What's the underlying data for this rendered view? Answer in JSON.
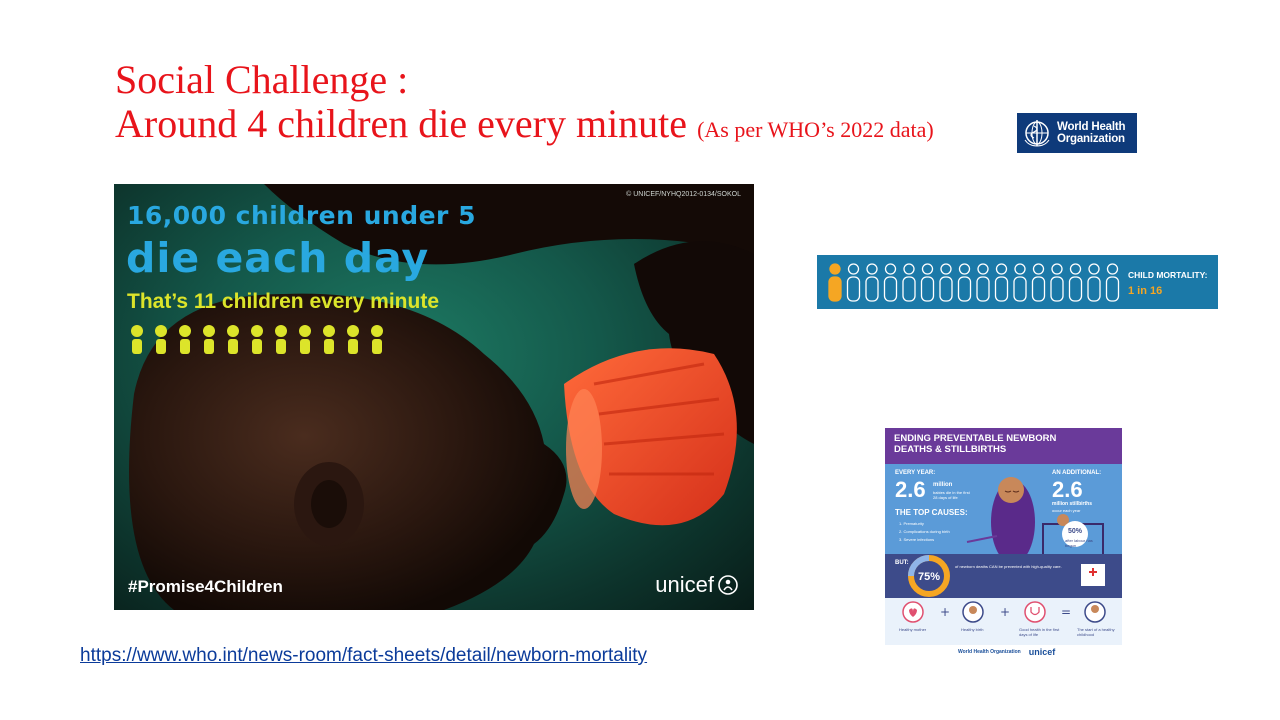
{
  "slide": {
    "title_line1": "Social Challenge :",
    "title_line2": "Around 4 children die every minute",
    "title_note": "(As per WHO’s 2022 data)",
    "url": "https://www.who.int/news-room/fact-sheets/detail/newborn-mortality"
  },
  "who_logo": {
    "line1": "World Health",
    "line2": "Organization"
  },
  "poster": {
    "line1": "16,000 children under 5",
    "line2": "die each day",
    "line3": "That’s 11 children every minute",
    "people_count": 11,
    "credit": "© UNICEF/NYHQ2012-0134/SOKOL",
    "hashtag": "#Promise4Children",
    "logo": "unicef"
  },
  "mortality_bar": {
    "label": "CHILD MORTALITY:",
    "value": "1 in 16",
    "total_figures": 16,
    "highlighted": 1
  },
  "infographic": {
    "title_line1": "ENDING PREVENTABLE NEWBORN",
    "title_line2": "DEATHS & STILLBIRTHS",
    "every_year": "EVERY YEAR:",
    "newborn_deaths_value": "2.6",
    "newborn_deaths_unit": "million",
    "newborn_deaths_desc": "babies die in the first 28 days of life",
    "additional": "AN ADDITIONAL:",
    "stillbirths_value": "2.6",
    "stillbirths_unit": "million stillbirths",
    "stillbirths_desc": "occur each year",
    "top_causes": "THE TOP CAUSES:",
    "causes": [
      "Prematurity",
      "Complications during birth",
      "Severe infections"
    ],
    "labour_pct": "50%",
    "labour_desc": "after labour has begun",
    "but": "BUT:",
    "preventable_pct": "75%",
    "preventable_desc": "of newborn deaths CAN be prevented with high-quality care.",
    "bottom_labels": [
      "Healthy mother",
      "Healthy birth",
      "Good health in the first days of life",
      "The start of a healthy childhood"
    ],
    "logos": [
      "World Health Organization",
      "unicef"
    ]
  },
  "colors": {
    "title_red": "#e8141b",
    "who_blue": "#0e3a7a",
    "poster_blue": "#29a8e0",
    "poster_yellow": "#dce42a",
    "mortality_blue": "#1b79a8",
    "mortality_orange": "#f5a623",
    "info_purple": "#6a3a9a",
    "info_blue": "#5b9bd8"
  }
}
